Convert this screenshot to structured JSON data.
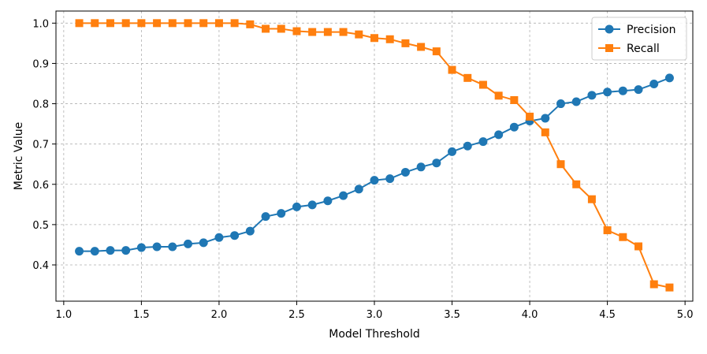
{
  "chart_data": {
    "type": "line",
    "title": "",
    "xlabel": "Model Threshold",
    "ylabel": "Metric Value",
    "xlim": [
      0.95,
      5.05
    ],
    "ylim": [
      0.31,
      1.03
    ],
    "xticks": [
      1.0,
      1.5,
      2.0,
      2.5,
      3.0,
      3.5,
      4.0,
      4.5,
      5.0
    ],
    "xtick_labels": [
      "1.0",
      "1.5",
      "2.0",
      "2.5",
      "3.0",
      "3.5",
      "4.0",
      "4.5",
      "5.0"
    ],
    "yticks": [
      0.4,
      0.5,
      0.6,
      0.7,
      0.8,
      0.9,
      1.0
    ],
    "ytick_labels": [
      "0.4",
      "0.5",
      "0.6",
      "0.7",
      "0.8",
      "0.9",
      "1.0"
    ],
    "grid": true,
    "legend_position": "top-right",
    "x": [
      1.1,
      1.2,
      1.3,
      1.4,
      1.5,
      1.6,
      1.7,
      1.8,
      1.9,
      2.0,
      2.1,
      2.2,
      2.3,
      2.4,
      2.5,
      2.6,
      2.7,
      2.8,
      2.9,
      3.0,
      3.1,
      3.2,
      3.3,
      3.4,
      3.5,
      3.6,
      3.7,
      3.8,
      3.9,
      4.0,
      4.1,
      4.2,
      4.3,
      4.4,
      4.5,
      4.6,
      4.7,
      4.8,
      4.9
    ],
    "series": [
      {
        "name": "Precision",
        "color": "#1f77b4",
        "marker": "circle",
        "values": [
          0.434,
          0.434,
          0.436,
          0.436,
          0.443,
          0.445,
          0.445,
          0.452,
          0.455,
          0.468,
          0.473,
          0.484,
          0.52,
          0.528,
          0.544,
          0.549,
          0.559,
          0.572,
          0.588,
          0.61,
          0.614,
          0.63,
          0.643,
          0.653,
          0.681,
          0.695,
          0.706,
          0.723,
          0.742,
          0.757,
          0.764,
          0.8,
          0.805,
          0.821,
          0.829,
          0.832,
          0.835,
          0.849,
          0.864
        ]
      },
      {
        "name": "Recall",
        "color": "#ff7f0e",
        "marker": "square",
        "values": [
          1.0,
          1.0,
          1.0,
          1.0,
          1.0,
          1.0,
          1.0,
          1.0,
          1.0,
          1.0,
          1.0,
          0.997,
          0.986,
          0.986,
          0.98,
          0.978,
          0.978,
          0.978,
          0.972,
          0.963,
          0.96,
          0.95,
          0.941,
          0.93,
          0.884,
          0.864,
          0.847,
          0.82,
          0.809,
          0.768,
          0.729,
          0.65,
          0.6,
          0.563,
          0.486,
          0.469,
          0.446,
          0.352,
          0.344
        ]
      }
    ]
  }
}
